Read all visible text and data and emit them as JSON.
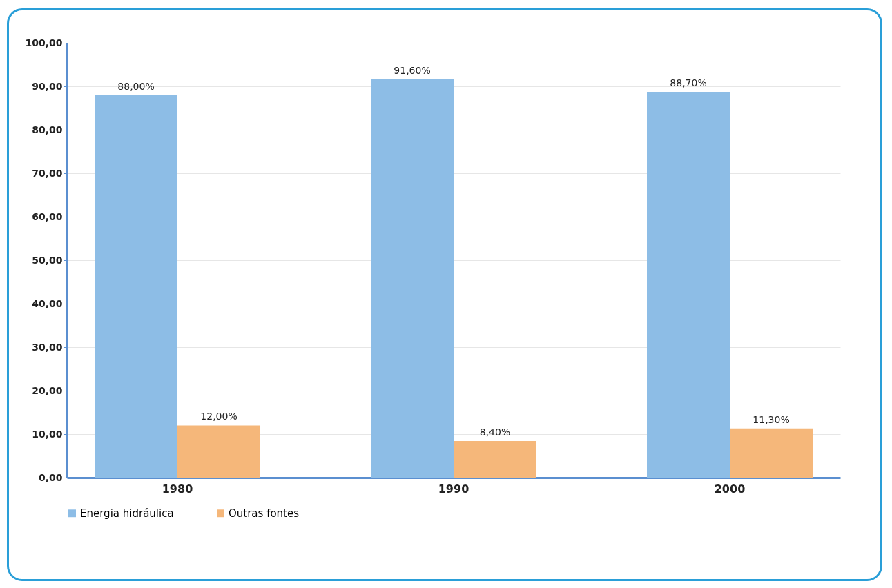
{
  "chart_data": {
    "type": "bar",
    "categories": [
      "1980",
      "1990",
      "2000"
    ],
    "series": [
      {
        "name": "Energia hidráulica",
        "color": "#8dbde6",
        "values": [
          88.0,
          91.6,
          88.7
        ],
        "value_labels": [
          "88,00%",
          "91,60%",
          "88,70%"
        ]
      },
      {
        "name": "Outras fontes",
        "color": "#f5b77a",
        "values": [
          12.0,
          8.4,
          11.3
        ],
        "value_labels": [
          "12,00%",
          "8,40%",
          "11,30%"
        ]
      }
    ],
    "ylim": [
      0,
      100
    ],
    "yticks": [
      {
        "value": 0,
        "label": "0,00"
      },
      {
        "value": 10,
        "label": "10,00"
      },
      {
        "value": 20,
        "label": "20,00"
      },
      {
        "value": 30,
        "label": "30,00"
      },
      {
        "value": 40,
        "label": "40,00"
      },
      {
        "value": 50,
        "label": "50,00"
      },
      {
        "value": 60,
        "label": "60,00"
      },
      {
        "value": 70,
        "label": "70,00"
      },
      {
        "value": 80,
        "label": "80,00"
      },
      {
        "value": 90,
        "label": "90,00"
      },
      {
        "value": 100,
        "label": "100,00"
      }
    ],
    "grid": "y",
    "legend": "bottom"
  }
}
